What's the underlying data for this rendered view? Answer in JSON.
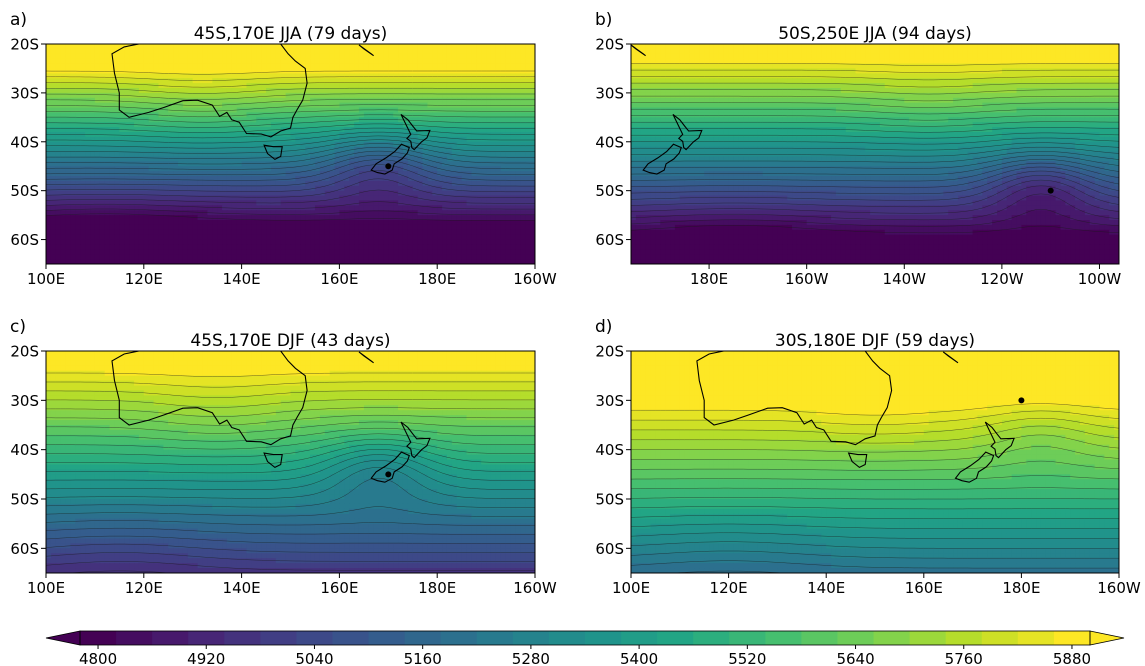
{
  "chart_data": {
    "type": "heatmap",
    "colormap": "viridis",
    "panels": [
      {
        "letter": "a)",
        "title": "45S,170E JJA (79 days)",
        "point": {
          "lat": -45,
          "lon": 170
        },
        "lon_range": [
          100,
          200
        ],
        "lat_range": [
          -65,
          -20
        ],
        "xticks": [
          {
            "lon": 100,
            "label": "100E"
          },
          {
            "lon": 120,
            "label": "120E"
          },
          {
            "lon": 140,
            "label": "140E"
          },
          {
            "lon": 160,
            "label": "160E"
          },
          {
            "lon": 180,
            "label": "180E"
          },
          {
            "lon": 200,
            "label": "160W"
          }
        ],
        "yticks": [
          {
            "lat": -20,
            "label": "20S"
          },
          {
            "lat": -30,
            "label": "30S"
          },
          {
            "lat": -40,
            "label": "40S"
          },
          {
            "lat": -50,
            "label": "50S"
          },
          {
            "lat": -60,
            "label": "60S"
          }
        ],
        "field": {
          "base": 5810,
          "gradient": 34,
          "center_lat": -27,
          "trough_depth": 150,
          "trough_lon": 168,
          "trough_lat": -45,
          "dip_depth": 80,
          "dip_lon": 112,
          "ridge_amp": 40,
          "ridge_lon": 132
        }
      },
      {
        "letter": "b)",
        "title": "50S,250E JJA (94 days)",
        "point": {
          "lat": -50,
          "lon": 250
        },
        "lon_range": [
          164,
          264
        ],
        "lat_range": [
          -65,
          -20
        ],
        "xticks": [
          {
            "lon": 180,
            "label": "180E"
          },
          {
            "lon": 200,
            "label": "160W"
          },
          {
            "lon": 220,
            "label": "140W"
          },
          {
            "lon": 240,
            "label": "120W"
          },
          {
            "lon": 260,
            "label": "100W"
          }
        ],
        "yticks": [
          {
            "lat": -20,
            "label": "20S"
          },
          {
            "lat": -30,
            "label": "30S"
          },
          {
            "lat": -40,
            "label": "40S"
          },
          {
            "lat": -50,
            "label": "50S"
          },
          {
            "lat": -60,
            "label": "60S"
          }
        ],
        "field": {
          "base": 5800,
          "gradient": 30,
          "center_lat": -26,
          "trough_depth": 170,
          "trough_lon": 248,
          "trough_lat": -49,
          "dip_depth": 60,
          "dip_lon": 185,
          "ridge_amp": 30,
          "ridge_lon": 225
        }
      },
      {
        "letter": "c)",
        "title": "45S,170E DJF (43 days)",
        "point": {
          "lat": -45,
          "lon": 170
        },
        "lon_range": [
          100,
          200
        ],
        "lat_range": [
          -65,
          -20
        ],
        "xticks": [
          {
            "lon": 100,
            "label": "100E"
          },
          {
            "lon": 120,
            "label": "120E"
          },
          {
            "lon": 140,
            "label": "140E"
          },
          {
            "lon": 160,
            "label": "160E"
          },
          {
            "lon": 180,
            "label": "180E"
          },
          {
            "lon": 200,
            "label": "160W"
          }
        ],
        "yticks": [
          {
            "lat": -20,
            "label": "20S"
          },
          {
            "lat": -30,
            "label": "30S"
          },
          {
            "lat": -40,
            "label": "40S"
          },
          {
            "lat": -50,
            "label": "50S"
          },
          {
            "lat": -60,
            "label": "60S"
          }
        ],
        "field": {
          "base": 5870,
          "gradient": 22,
          "center_lat": -24,
          "trough_depth": 140,
          "trough_lon": 168,
          "trough_lat": -44,
          "dip_depth": 40,
          "dip_lon": 115,
          "ridge_amp": 35,
          "ridge_lon": 135
        }
      },
      {
        "letter": "d)",
        "title": "30S,180E DJF (59 days)",
        "point": {
          "lat": -30,
          "lon": 180
        },
        "lon_range": [
          100,
          200
        ],
        "lat_range": [
          -65,
          -20
        ],
        "xticks": [
          {
            "lon": 100,
            "label": "100E"
          },
          {
            "lon": 120,
            "label": "120E"
          },
          {
            "lon": 140,
            "label": "140E"
          },
          {
            "lon": 160,
            "label": "160E"
          },
          {
            "lon": 180,
            "label": "180E"
          },
          {
            "lon": 200,
            "label": "160W"
          }
        ],
        "yticks": [
          {
            "lat": -20,
            "label": "20S"
          },
          {
            "lat": -30,
            "label": "30S"
          },
          {
            "lat": -40,
            "label": "40S"
          },
          {
            "lat": -50,
            "label": "50S"
          },
          {
            "lat": -60,
            "label": "60S"
          }
        ],
        "field": {
          "base": 5900,
          "gradient": 20,
          "center_lat": -30,
          "trough_depth": 60,
          "trough_lon": 184,
          "trough_lat": -37,
          "dip_depth": 30,
          "dip_lon": 120,
          "ridge_amp": 20,
          "ridge_lon": 150
        }
      }
    ],
    "colorbar": {
      "min": 4780,
      "max": 5900,
      "step": 40,
      "extend": "both",
      "ticks": [
        4800,
        4920,
        5040,
        5160,
        5280,
        5400,
        5520,
        5640,
        5760,
        5880
      ]
    }
  }
}
